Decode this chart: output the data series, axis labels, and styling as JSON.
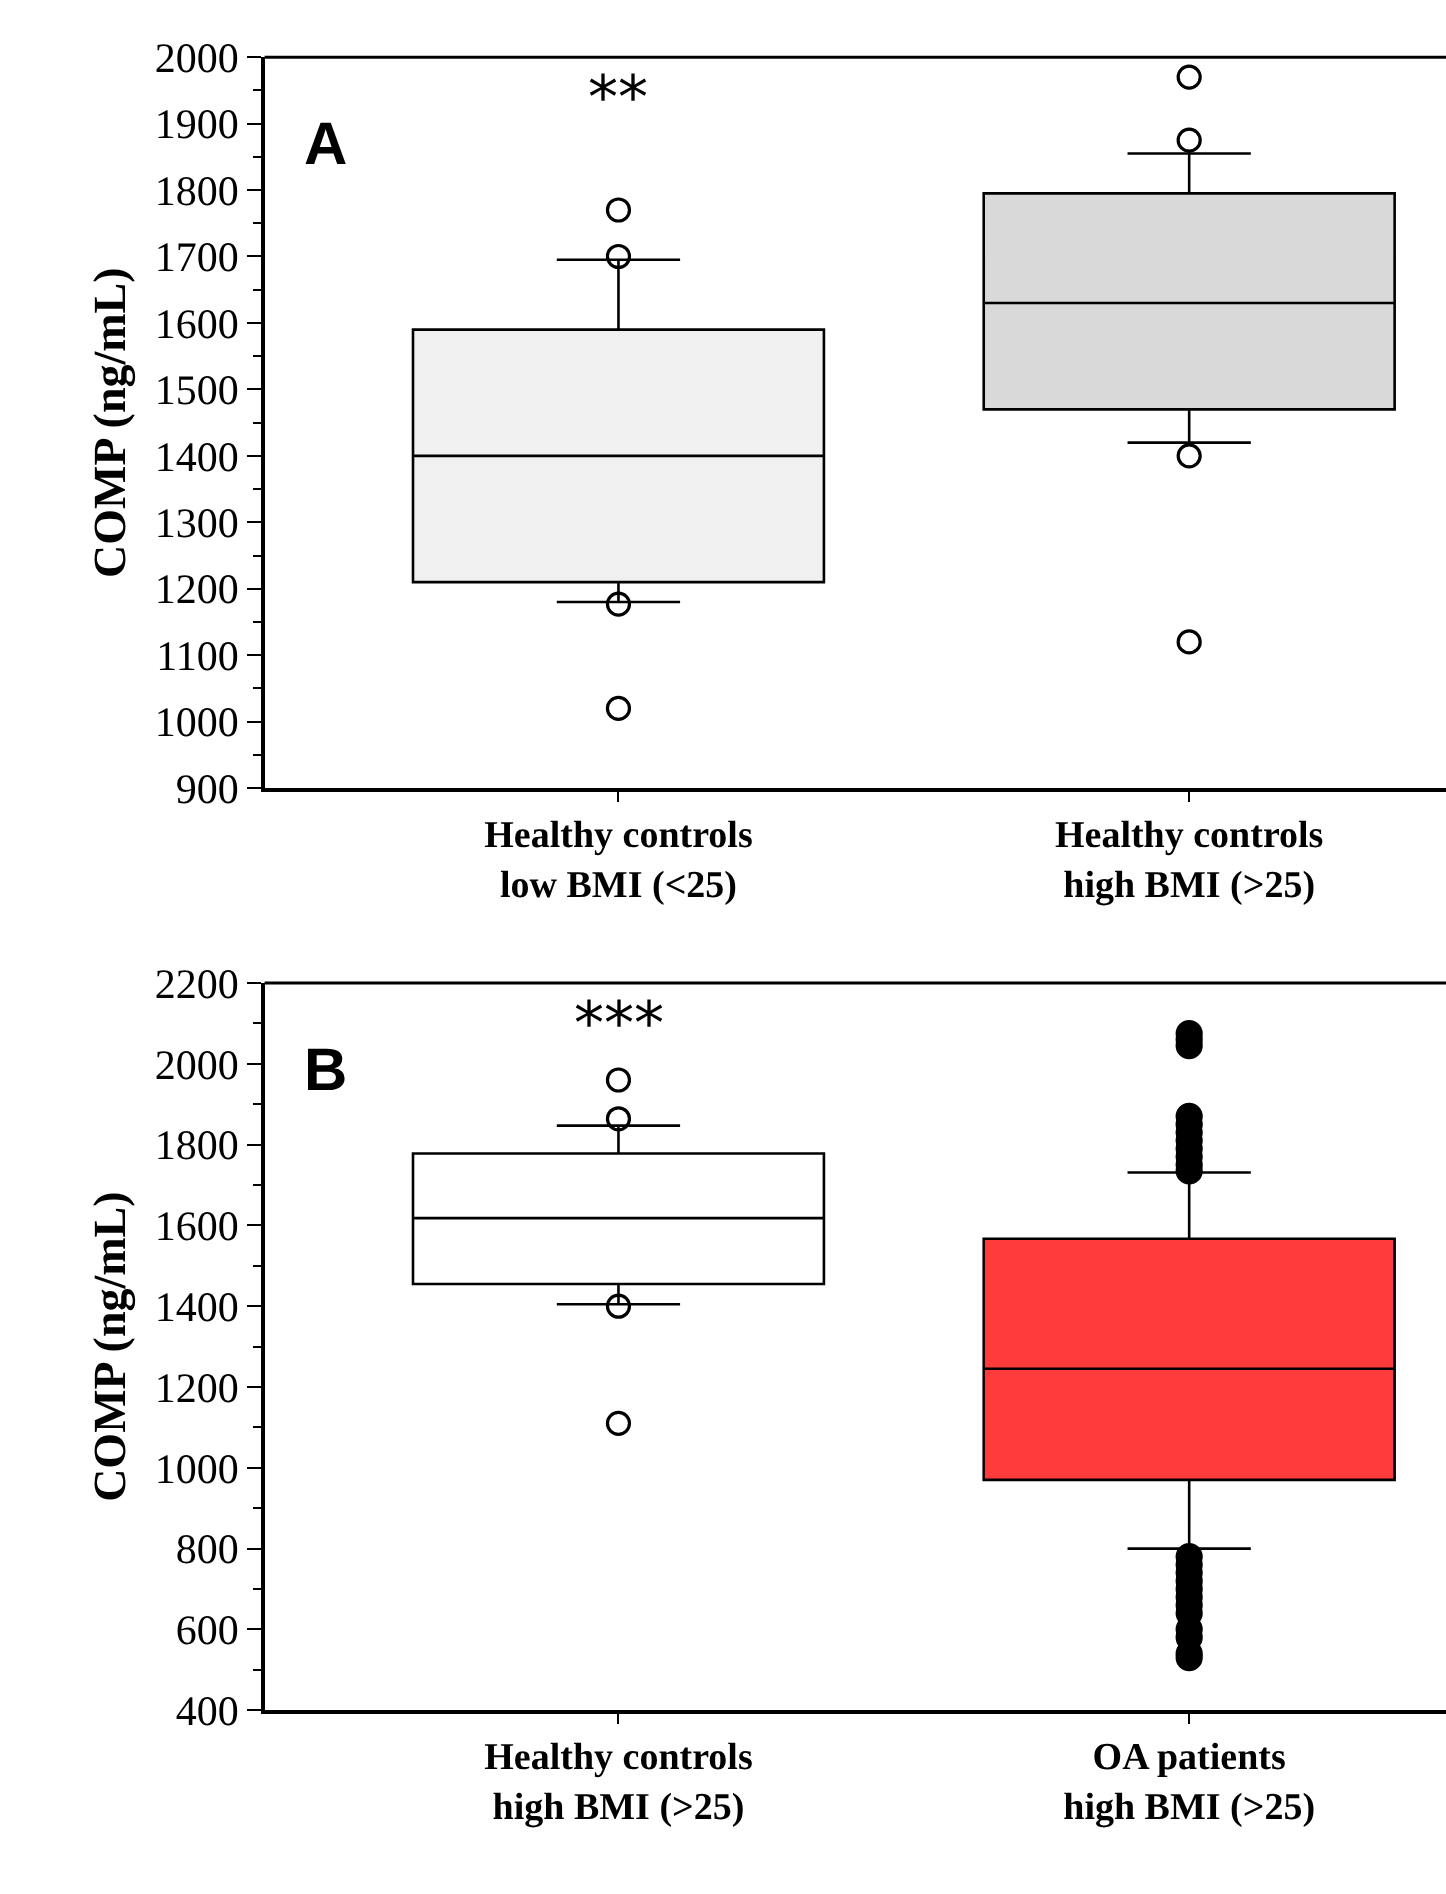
{
  "chart_data": [
    {
      "type": "box",
      "title": "A",
      "ylabel": "COMP (ng/mL)",
      "categories": [
        "Healthy controls\nlow BMI (<25)",
        "Healthy controls\nhigh BMI (>25)"
      ],
      "colors": [
        "#f0f0f0",
        "#d9d9d9"
      ],
      "boxes": [
        {
          "low": 1180,
          "q1": 1210,
          "median": 1400,
          "q3": 1590,
          "high": 1695,
          "outliers": [
            1770,
            1700,
            1177,
            1020
          ]
        },
        {
          "low": 1420,
          "q1": 1470,
          "median": 1630,
          "q3": 1795,
          "high": 1855,
          "outliers": [
            1970,
            1875,
            1400,
            1120
          ]
        }
      ],
      "ylim": [
        900,
        2000
      ],
      "yticks": [
        900,
        1000,
        1100,
        1200,
        1300,
        1400,
        1500,
        1600,
        1700,
        1800,
        1900,
        2000
      ],
      "annotations": [
        "**"
      ]
    },
    {
      "type": "box",
      "title": "B",
      "ylabel": "COMP (ng/mL)",
      "categories": [
        "Healthy controls\nhigh BMI (>25)",
        "OA patients\nhigh BMI (>25)"
      ],
      "colors": [
        "#ffffff",
        "#ff3b3b"
      ],
      "boxes": [
        {
          "low": 1405,
          "q1": 1455,
          "median": 1618,
          "q3": 1778,
          "high": 1847,
          "outliers": [
            1960,
            1864,
            1400,
            1110
          ]
        },
        {
          "low": 800,
          "q1": 970,
          "median": 1245,
          "q3": 1567,
          "high": 1731,
          "outliers": [
            2075,
            2060,
            2045,
            1870,
            1850,
            1830,
            1810,
            1790,
            1770,
            1750,
            1735,
            780,
            760,
            740,
            720,
            700,
            680,
            660,
            640,
            600,
            580,
            540,
            530
          ]
        }
      ],
      "ylim": [
        400,
        2200
      ],
      "yticks": [
        400,
        600,
        800,
        1000,
        1200,
        1400,
        1600,
        1800,
        2000,
        2200
      ],
      "annotations": [
        "***"
      ]
    }
  ]
}
